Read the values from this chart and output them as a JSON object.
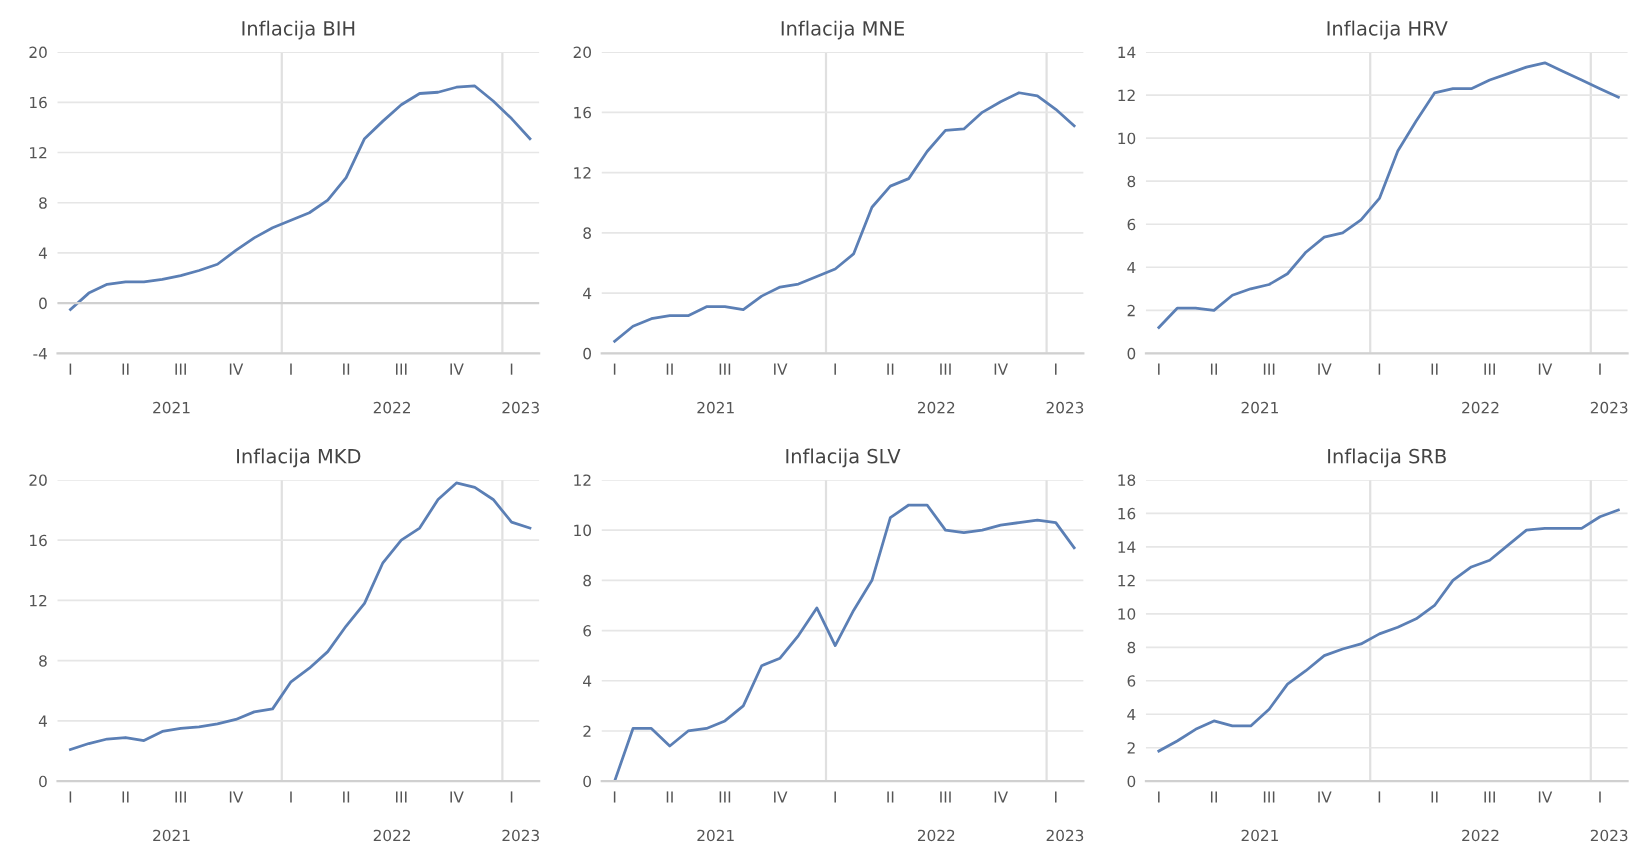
{
  "chart_data": [
    {
      "type": "line",
      "title": "Inflacija BIH",
      "categories": [
        "I",
        null,
        null,
        "II",
        null,
        null,
        "III",
        null,
        null,
        "IV",
        null,
        null,
        "I",
        null,
        null,
        "II",
        null,
        null,
        "III",
        null,
        null,
        "IV",
        null,
        null,
        "I",
        null
      ],
      "series": [
        {
          "color": "#5b7fb5",
          "values": [
            -0.5,
            0.8,
            1.5,
            1.7,
            1.7,
            1.9,
            2.2,
            2.6,
            3.1,
            4.2,
            5.2,
            6.0,
            6.6,
            7.2,
            8.2,
            10.0,
            13.1,
            14.5,
            15.8,
            16.7,
            16.8,
            17.2,
            17.3,
            16.1,
            14.7,
            13.1
          ]
        }
      ],
      "ylim": [
        -4,
        20
      ],
      "yticks": [
        -4,
        0,
        4,
        8,
        12,
        16,
        20
      ],
      "grid": "y",
      "annotations": [
        "2021",
        "2022",
        "2023"
      ]
    },
    {
      "type": "line",
      "title": "Inflacija MNE",
      "categories": [
        "I",
        null,
        null,
        "II",
        null,
        null,
        "III",
        null,
        null,
        "IV",
        null,
        null,
        "I",
        null,
        null,
        "II",
        null,
        null,
        "III",
        null,
        null,
        "IV",
        null,
        null,
        "I",
        null
      ],
      "series": [
        {
          "color": "#5b7fb5",
          "values": [
            0.8,
            1.8,
            2.3,
            2.5,
            2.5,
            3.1,
            3.1,
            2.9,
            3.8,
            4.4,
            4.6,
            5.1,
            5.6,
            6.6,
            9.7,
            11.1,
            11.6,
            13.4,
            14.8,
            14.9,
            16.0,
            16.7,
            17.3,
            17.1,
            16.2,
            15.1
          ]
        }
      ],
      "ylim": [
        0,
        20
      ],
      "yticks": [
        0,
        4,
        8,
        12,
        16,
        20
      ],
      "grid": "y",
      "annotations": [
        "2021",
        "2022",
        "2023"
      ]
    },
    {
      "type": "line",
      "title": "Inflacija HRV",
      "categories": [
        "I",
        null,
        null,
        "II",
        null,
        null,
        "III",
        null,
        null,
        "IV",
        null,
        null,
        "I",
        null,
        null,
        "II",
        null,
        null,
        "III",
        null,
        null,
        "IV",
        null,
        null,
        "I",
        null
      ],
      "series": [
        {
          "color": "#5b7fb5",
          "values": [
            1.2,
            2.1,
            2.1,
            2.0,
            2.7,
            3.0,
            3.2,
            3.7,
            4.7,
            5.4,
            5.6,
            6.2,
            7.2,
            9.4,
            10.8,
            12.1,
            12.3,
            12.3,
            12.7,
            13.0,
            13.3,
            13.5,
            13.1,
            12.7,
            12.3,
            11.9
          ]
        }
      ],
      "ylim": [
        0,
        14
      ],
      "yticks": [
        0,
        2,
        4,
        6,
        8,
        10,
        12,
        14
      ],
      "grid": "y",
      "annotations": [
        "2021",
        "2022",
        "2023"
      ]
    },
    {
      "type": "line",
      "title": "Inflacija MKD",
      "categories": [
        "I",
        null,
        null,
        "II",
        null,
        null,
        "III",
        null,
        null,
        "IV",
        null,
        null,
        "I",
        null,
        null,
        "II",
        null,
        null,
        "III",
        null,
        null,
        "IV",
        null,
        null,
        "I",
        null
      ],
      "series": [
        {
          "color": "#5b7fb5",
          "values": [
            2.1,
            2.5,
            2.8,
            2.9,
            2.7,
            3.3,
            3.5,
            3.6,
            3.8,
            4.1,
            4.6,
            4.8,
            6.6,
            7.5,
            8.6,
            10.3,
            11.8,
            14.5,
            16.0,
            16.8,
            18.7,
            19.8,
            19.5,
            18.7,
            17.2,
            16.8
          ]
        }
      ],
      "ylim": [
        0,
        20
      ],
      "yticks": [
        0,
        4,
        8,
        12,
        16,
        20
      ],
      "grid": "y",
      "annotations": [
        "2021",
        "2022",
        "2023"
      ]
    },
    {
      "type": "line",
      "title": "Inflacija SLV",
      "categories": [
        "I",
        null,
        null,
        "II",
        null,
        null,
        "III",
        null,
        null,
        "IV",
        null,
        null,
        "I",
        null,
        null,
        "II",
        null,
        null,
        "III",
        null,
        null,
        "IV",
        null,
        null,
        "I",
        null
      ],
      "series": [
        {
          "color": "#5b7fb5",
          "values": [
            0,
            2.1,
            2.1,
            1.4,
            2.0,
            2.1,
            2.4,
            3.0,
            4.6,
            4.9,
            5.8,
            6.9,
            5.4,
            6.8,
            8.0,
            10.5,
            11.0,
            11.0,
            10.0,
            9.9,
            10.0,
            10.2,
            10.3,
            10.4,
            10.3,
            9.3
          ]
        }
      ],
      "ylim": [
        0,
        12
      ],
      "yticks": [
        0,
        2,
        4,
        6,
        8,
        10,
        12
      ],
      "grid": "y",
      "annotations": [
        "2021",
        "2022",
        "2023"
      ]
    },
    {
      "type": "line",
      "title": "Inflacija SRB",
      "categories": [
        "I",
        null,
        null,
        "II",
        null,
        null,
        "III",
        null,
        null,
        "IV",
        null,
        null,
        "I",
        null,
        null,
        "II",
        null,
        null,
        "III",
        null,
        null,
        "IV",
        null,
        null,
        "I",
        null
      ],
      "series": [
        {
          "color": "#5b7fb5",
          "values": [
            1.8,
            2.4,
            3.1,
            3.6,
            3.3,
            3.3,
            4.3,
            5.8,
            6.6,
            7.5,
            7.9,
            8.2,
            8.8,
            9.2,
            9.7,
            10.5,
            12.0,
            12.8,
            13.2,
            14.1,
            15.0,
            15.1,
            15.1,
            15.1,
            15.8,
            16.2
          ]
        }
      ],
      "ylim": [
        0,
        18
      ],
      "yticks": [
        0,
        2,
        4,
        6,
        8,
        10,
        12,
        14,
        16,
        18
      ],
      "grid": "y",
      "annotations": [
        "2021",
        "2022",
        "2023"
      ]
    }
  ]
}
